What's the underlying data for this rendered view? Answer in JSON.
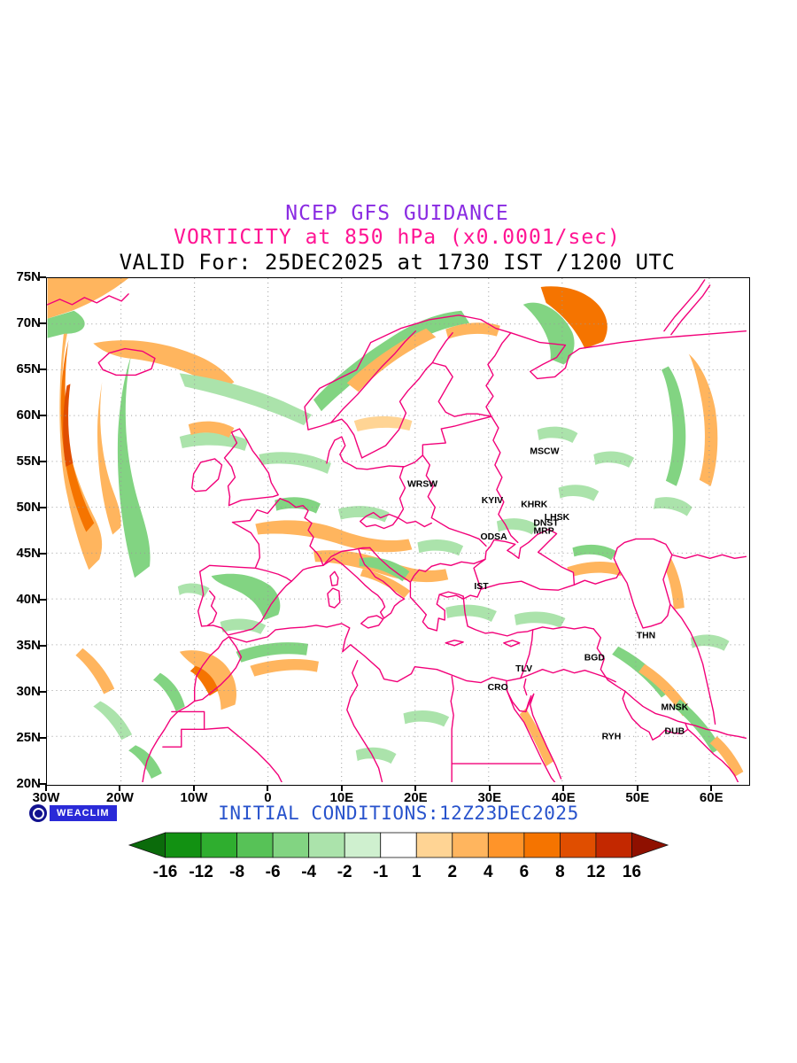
{
  "header": {
    "line1": "NCEP GFS GUIDANCE",
    "line2": "VORTICITY at 850 hPa (x0.0001/sec)",
    "line3": "VALID For: 25DEC2025 at 1730 IST /1200 UTC",
    "colors": {
      "line1": "#8a2be2",
      "line2": "#ff1493",
      "line3": "#000000"
    }
  },
  "footer": {
    "logo_label": "WEACLIM",
    "initial_conditions": "INITIAL CONDITIONS:12Z23DEC2025",
    "colors": {
      "initial_conditions": "#2853cc",
      "logo_bg": "#2a2ad8"
    }
  },
  "map": {
    "coast_color": "#f20079",
    "grid_color": "#999999",
    "cities": [
      {
        "name": "MSCW",
        "lon": 37.6,
        "lat": 55.8
      },
      {
        "name": "WRSW",
        "lon": 21.0,
        "lat": 52.25
      },
      {
        "name": "KYIV",
        "lon": 30.5,
        "lat": 50.45
      },
      {
        "name": "KHRK",
        "lon": 36.2,
        "lat": 50.0
      },
      {
        "name": "LHSK",
        "lon": 39.3,
        "lat": 48.6
      },
      {
        "name": "DNST",
        "lon": 37.8,
        "lat": 48.0
      },
      {
        "name": "MRP",
        "lon": 37.5,
        "lat": 47.1
      },
      {
        "name": "ODSA",
        "lon": 30.7,
        "lat": 46.5
      },
      {
        "name": "IST",
        "lon": 29.0,
        "lat": 41.05
      },
      {
        "name": "THN",
        "lon": 51.4,
        "lat": 35.7
      },
      {
        "name": "BGD",
        "lon": 44.4,
        "lat": 33.3
      },
      {
        "name": "TLV",
        "lon": 34.8,
        "lat": 32.1
      },
      {
        "name": "CRO",
        "lon": 31.25,
        "lat": 30.05
      },
      {
        "name": "MNSK",
        "lon": 55.3,
        "lat": 27.9
      },
      {
        "name": "RYH",
        "lon": 46.7,
        "lat": 24.7
      },
      {
        "name": "DUB",
        "lon": 55.3,
        "lat": 25.25
      }
    ]
  },
  "chart_data": {
    "type": "heatmap",
    "title": "NCEP GFS GUIDANCE",
    "subtitle": "VORTICITY at 850 hPa (x0.0001/sec)",
    "valid": "VALID For: 25DEC2025 at 1730 IST /1200 UTC",
    "initial_conditions": "12Z23DEC2025",
    "model": "NCEP GFS",
    "variable": "vorticity",
    "level_hPa": 850,
    "units": "x0.0001/sec",
    "lon_range": [
      -30,
      65
    ],
    "lat_range": [
      20,
      75
    ],
    "lat_tick_interval": 5,
    "lon_tick_interval": 10,
    "lat_ticks": [
      "75N",
      "70N",
      "65N",
      "60N",
      "55N",
      "50N",
      "45N",
      "40N",
      "35N",
      "30N",
      "25N",
      "20N"
    ],
    "lon_ticks": [
      "30W",
      "20W",
      "10W",
      "0",
      "10E",
      "20E",
      "30E",
      "40E",
      "50E",
      "60E"
    ],
    "grid": "dotted",
    "legend_levels": [
      -16,
      -12,
      -8,
      -6,
      -4,
      -2,
      -1,
      1,
      2,
      4,
      6,
      8,
      12,
      16
    ],
    "legend_colors": [
      "#0b6b0b",
      "#129112",
      "#2fae2f",
      "#57c257",
      "#82d482",
      "#abe3ab",
      "#cff0cf",
      "#ffffff",
      "#ffd494",
      "#ffb55e",
      "#ff9429",
      "#f57400",
      "#e04e00",
      "#c32800",
      "#8f1000"
    ],
    "legend_position": "bottom"
  }
}
